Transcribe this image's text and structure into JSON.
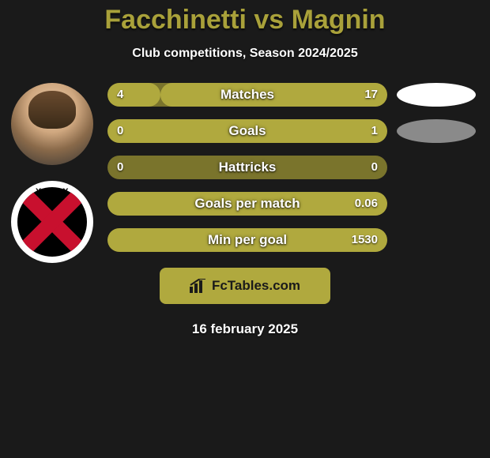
{
  "background_color": "#1a1a1a",
  "title": {
    "text": "Facchinetti vs Magnin",
    "color": "#a9a13a",
    "fontsize": 34,
    "fontweight": 800
  },
  "subtitle": {
    "text": "Club competitions, Season 2024/2025",
    "color": "#ffffff",
    "fontsize": 16
  },
  "player_avatar": {
    "name": "player-avatar"
  },
  "club_avatar": {
    "label": "XAMAX"
  },
  "right_ovals": [
    {
      "color": "#ffffff"
    },
    {
      "color": "#8a8a8a"
    }
  ],
  "bars": {
    "track_color": "#7a742c",
    "fill_color": "#b0a93e",
    "height": 30,
    "radius": 16,
    "gap": 16,
    "label_fontsize": 17,
    "value_fontsize": 15,
    "rows": [
      {
        "label": "Matches",
        "left": "4",
        "right": "17",
        "left_pct": 19,
        "right_pct": 81
      },
      {
        "label": "Goals",
        "left": "0",
        "right": "1",
        "left_pct": 0,
        "right_pct": 100
      },
      {
        "label": "Hattricks",
        "left": "0",
        "right": "0",
        "left_pct": 0,
        "right_pct": 0
      },
      {
        "label": "Goals per match",
        "left": "",
        "right": "0.06",
        "left_pct": 0,
        "right_pct": 100
      },
      {
        "label": "Min per goal",
        "left": "",
        "right": "1530",
        "left_pct": 0,
        "right_pct": 100
      }
    ]
  },
  "footer_badge": {
    "text": "FcTables.com",
    "background": "#b0a93e",
    "text_color": "#1a1a1a",
    "icon_color": "#1a1a1a"
  },
  "footer_date": {
    "text": "16 february 2025",
    "color": "#ffffff",
    "fontsize": 17
  }
}
